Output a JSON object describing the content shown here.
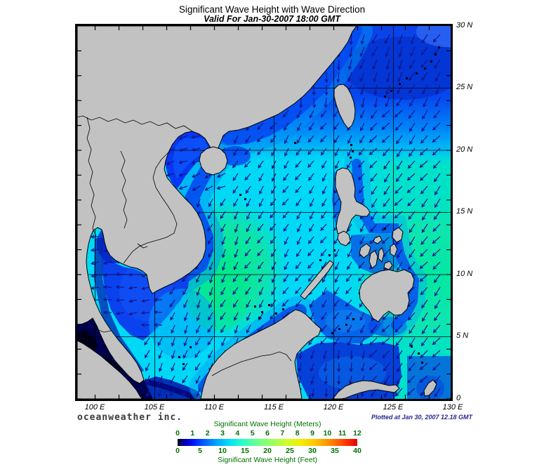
{
  "title": "Significant Wave Height with Wave Direction",
  "subtitle": "Valid For Jan-30-2007 18:00 GMT",
  "branding": "oceanweather inc.",
  "plotted_at": "Plotted at Jan 30, 2007 12.18 GMT",
  "map": {
    "lon_labels": [
      "100 E",
      "105 E",
      "110 E",
      "115 E",
      "120 E",
      "125 E",
      "130 E"
    ],
    "lat_labels": [
      "30 N",
      "25 N",
      "20 N",
      "15 N",
      "10 N",
      "5 N",
      "0"
    ]
  },
  "legend": {
    "title_meters": "Significant Wave Height (Meters)",
    "title_feet": "Significant Wave Height (Feet)",
    "meters_ticks": [
      "0",
      "1",
      "2",
      "3",
      "4",
      "5",
      "6",
      "7",
      "8",
      "9",
      "10",
      "11",
      "12"
    ],
    "feet_ticks": [
      "0",
      "5",
      "10",
      "15",
      "20",
      "25",
      "30",
      "35",
      "40"
    ],
    "gradient_stops": [
      [
        "0%",
        "#000000"
      ],
      [
        "1.5%",
        "#000060"
      ],
      [
        "5%",
        "#0000c8"
      ],
      [
        "9%",
        "#0018ff"
      ],
      [
        "15%",
        "#0060ff"
      ],
      [
        "22%",
        "#00a8ff"
      ],
      [
        "29%",
        "#00e0f8"
      ],
      [
        "36%",
        "#28ffc8"
      ],
      [
        "44%",
        "#68ff90"
      ],
      [
        "52%",
        "#98ff60"
      ],
      [
        "60%",
        "#c8ff30"
      ],
      [
        "68%",
        "#f0f000"
      ],
      [
        "76%",
        "#ffc800"
      ],
      [
        "84%",
        "#ff9000"
      ],
      [
        "92%",
        "#ff4800"
      ],
      [
        "100%",
        "#e80000"
      ]
    ]
  },
  "colors": {
    "land": "#c2c2c2",
    "coastline": "#000000",
    "ocean_base": "#00d9f5",
    "arrow": "#14148e",
    "grid": "#000000",
    "legend_text": "#007000",
    "plotted_text": "#26268e",
    "brand_text": "#3a3a3a"
  }
}
